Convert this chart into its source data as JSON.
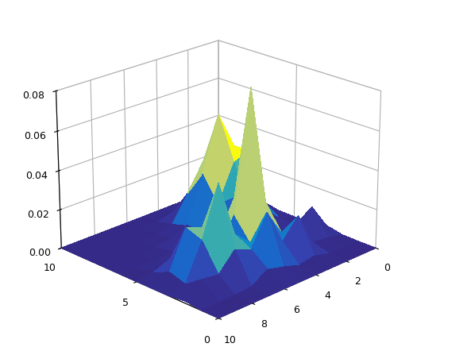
{
  "zlim": [
    0,
    0.08
  ],
  "zticks": [
    0,
    0.02,
    0.04,
    0.06,
    0.08
  ],
  "xticks": [
    0,
    2,
    4,
    6,
    8,
    10
  ],
  "yticks": [
    0,
    5,
    10
  ],
  "elev": 22,
  "azim": -135,
  "colormap": "YlGnBu_r",
  "n": 11,
  "Z": [
    [
      0.0,
      0.0,
      0.0,
      0.0,
      0.0,
      0.0,
      0.0,
      0.0,
      0.0,
      0.0,
      0.0
    ],
    [
      0.0,
      0.005,
      0.008,
      0.003,
      0.002,
      0.012,
      0.005,
      0.002,
      0.001,
      0.0,
      0.0
    ],
    [
      0.0,
      0.008,
      0.022,
      0.01,
      0.008,
      0.025,
      0.01,
      0.005,
      0.002,
      0.001,
      0.0
    ],
    [
      0.0,
      0.01,
      0.025,
      0.015,
      0.02,
      0.03,
      0.015,
      0.01,
      0.005,
      0.002,
      0.0
    ],
    [
      0.0,
      0.012,
      0.018,
      0.025,
      0.045,
      0.082,
      0.02,
      0.008,
      0.003,
      0.001,
      0.0
    ],
    [
      0.0,
      0.008,
      0.012,
      0.018,
      0.03,
      0.035,
      0.025,
      0.012,
      0.006,
      0.002,
      0.0
    ],
    [
      0.0,
      0.005,
      0.01,
      0.045,
      0.035,
      0.02,
      0.02,
      0.01,
      0.004,
      0.001,
      0.0
    ],
    [
      0.0,
      0.003,
      0.012,
      0.055,
      0.04,
      0.015,
      0.012,
      0.005,
      0.002,
      0.001,
      0.0
    ],
    [
      0.0,
      0.002,
      0.008,
      0.02,
      0.018,
      0.01,
      0.008,
      0.003,
      0.001,
      0.0,
      0.0
    ],
    [
      0.0,
      0.001,
      0.005,
      0.01,
      0.008,
      0.005,
      0.003,
      0.001,
      0.0,
      0.0,
      0.0
    ],
    [
      0.0,
      0.0,
      0.0,
      0.0,
      0.0,
      0.0,
      0.0,
      0.0,
      0.0,
      0.0,
      0.0
    ]
  ],
  "figsize": [
    5.98,
    4.42
  ],
  "dpi": 100
}
